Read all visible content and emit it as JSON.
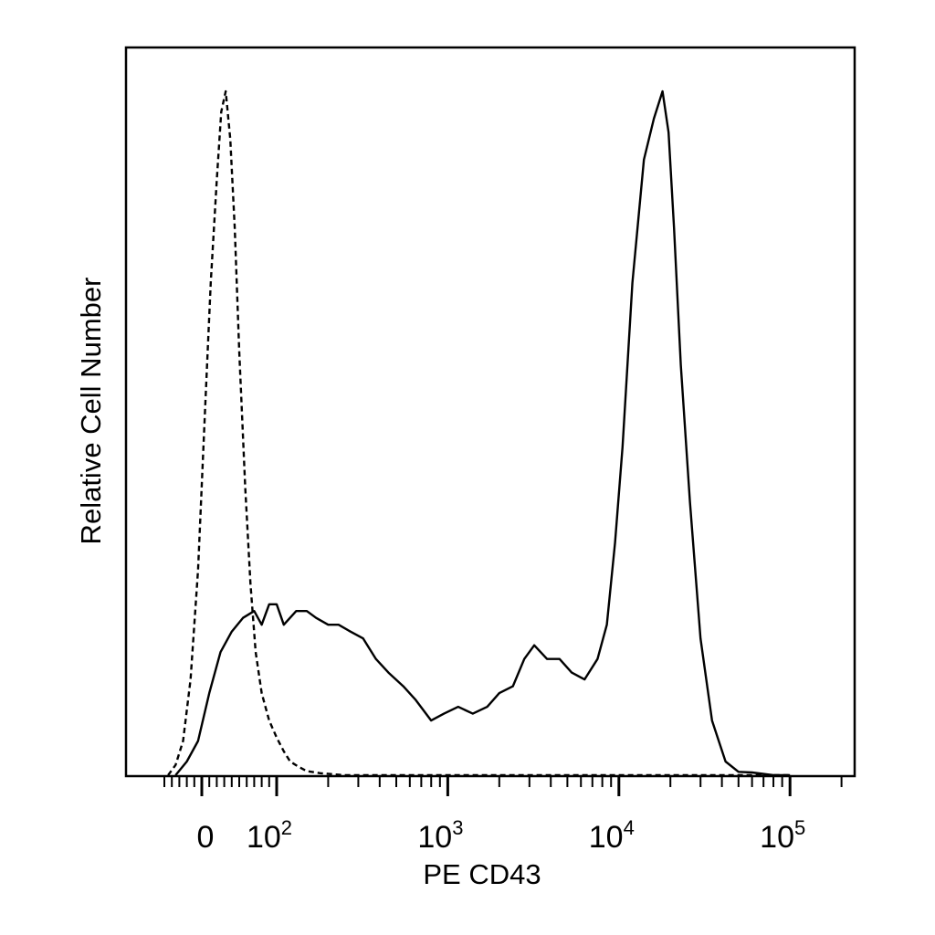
{
  "chart_data": {
    "type": "line",
    "title": "",
    "xlabel": "PE CD43",
    "ylabel": "Relative Cell Number",
    "x_scale": "biexponential",
    "xlim": [
      -60,
      250000
    ],
    "ylim": [
      0,
      1.0
    ],
    "grid": false,
    "legend": "none",
    "x_ticks": [
      {
        "value": 0,
        "base": "0",
        "exp": ""
      },
      {
        "value": 100,
        "base": "10",
        "exp": "2"
      },
      {
        "value": 1000,
        "base": "10",
        "exp": "3"
      },
      {
        "value": 10000,
        "base": "10",
        "exp": "4"
      },
      {
        "value": 100000,
        "base": "10",
        "exp": "5"
      }
    ],
    "series": [
      {
        "style": "dashed",
        "color": "#000000",
        "x": [
          -45,
          -35,
          -25,
          -15,
          -5,
          5,
          12,
          20,
          26,
          32,
          38,
          44,
          50,
          58,
          65,
          72,
          80,
          90,
          100,
          110,
          120,
          135,
          150,
          180,
          250,
          500,
          1000,
          5000,
          20000,
          100000
        ],
        "y": [
          0.0,
          0.015,
          0.05,
          0.14,
          0.3,
          0.55,
          0.72,
          0.87,
          0.97,
          1.0,
          0.93,
          0.8,
          0.62,
          0.42,
          0.28,
          0.18,
          0.12,
          0.08,
          0.055,
          0.035,
          0.02,
          0.012,
          0.006,
          0.003,
          0.0,
          0.0,
          0.0,
          0.0,
          0.0,
          0.0
        ]
      },
      {
        "style": "solid",
        "color": "#000000",
        "x": [
          -35,
          -20,
          -5,
          10,
          25,
          40,
          55,
          70,
          80,
          90,
          100,
          110,
          130,
          150,
          170,
          200,
          230,
          270,
          320,
          380,
          450,
          550,
          650,
          800,
          950,
          1150,
          1400,
          1700,
          2000,
          2400,
          2800,
          3200,
          3800,
          4500,
          5300,
          6300,
          7500,
          8500,
          9500,
          10500,
          12000,
          14000,
          16000,
          18000,
          19500,
          21000,
          23000,
          26000,
          30000,
          35000,
          42000,
          50000,
          60000,
          80000,
          100000
        ],
        "y": [
          0.0,
          0.02,
          0.05,
          0.12,
          0.18,
          0.21,
          0.23,
          0.24,
          0.22,
          0.25,
          0.25,
          0.22,
          0.24,
          0.24,
          0.23,
          0.22,
          0.22,
          0.21,
          0.2,
          0.17,
          0.15,
          0.13,
          0.11,
          0.08,
          0.09,
          0.1,
          0.09,
          0.1,
          0.12,
          0.13,
          0.17,
          0.19,
          0.17,
          0.17,
          0.15,
          0.14,
          0.17,
          0.22,
          0.34,
          0.48,
          0.72,
          0.9,
          0.96,
          1.0,
          0.94,
          0.8,
          0.6,
          0.4,
          0.2,
          0.08,
          0.02,
          0.005,
          0.004,
          0.0,
          0.0
        ]
      }
    ]
  }
}
